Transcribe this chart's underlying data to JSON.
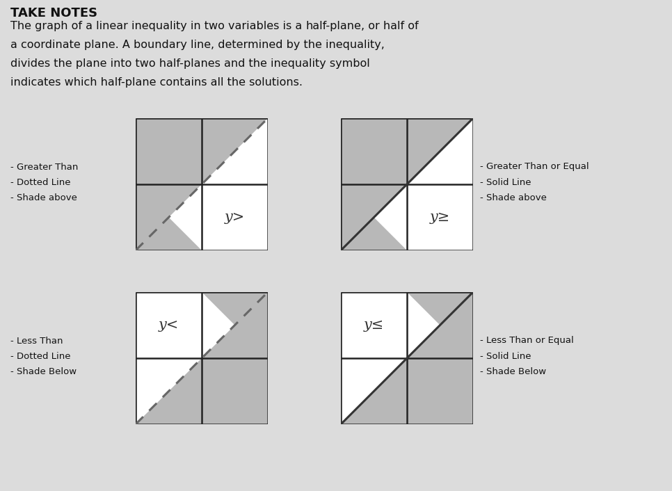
{
  "bg_color": "#dcdcdc",
  "shade_color": "#b8b8b8",
  "white_color": "#ffffff",
  "grid_color": "#222222",
  "diag_color_dashed": "#666666",
  "diag_color_solid": "#333333",
  "label_color": "#333333",
  "text_color": "#111111",
  "panels": [
    {
      "label": "y>",
      "line_style": "dashed",
      "shade": "above",
      "col": 0,
      "row": 0
    },
    {
      "label": "y≥",
      "line_style": "solid",
      "shade": "above",
      "col": 1,
      "row": 0
    },
    {
      "label": "y<",
      "line_style": "dashed",
      "shade": "below",
      "col": 0,
      "row": 1
    },
    {
      "label": "y≤",
      "line_style": "solid",
      "shade": "below",
      "col": 1,
      "row": 1
    }
  ],
  "left_labels_top": [
    "- Greater Than",
    "- Dotted Line",
    "- Shade above"
  ],
  "left_labels_bot": [
    "- Less Than",
    "- Dotted Line",
    "- Shade Below"
  ],
  "right_labels_top": [
    "- Greater Than or Equal",
    "- Solid Line",
    "- Shade above"
  ],
  "right_labels_bot": [
    "- Less Than or Equal",
    "- Solid Line",
    "- Shade Below"
  ],
  "header": "TAKE NOTES",
  "para_lines": [
    [
      "The graph of a linear inequality in two variables is a ",
      "half-plane",
      ", or half of"
    ],
    [
      "a coordinate plane. A ",
      "boundary line",
      ", determined by the inequality,"
    ],
    [
      "divides the plane into two half-planes and the inequality symbol"
    ],
    [
      "indicates which half-plane contains all the solutions."
    ]
  ]
}
